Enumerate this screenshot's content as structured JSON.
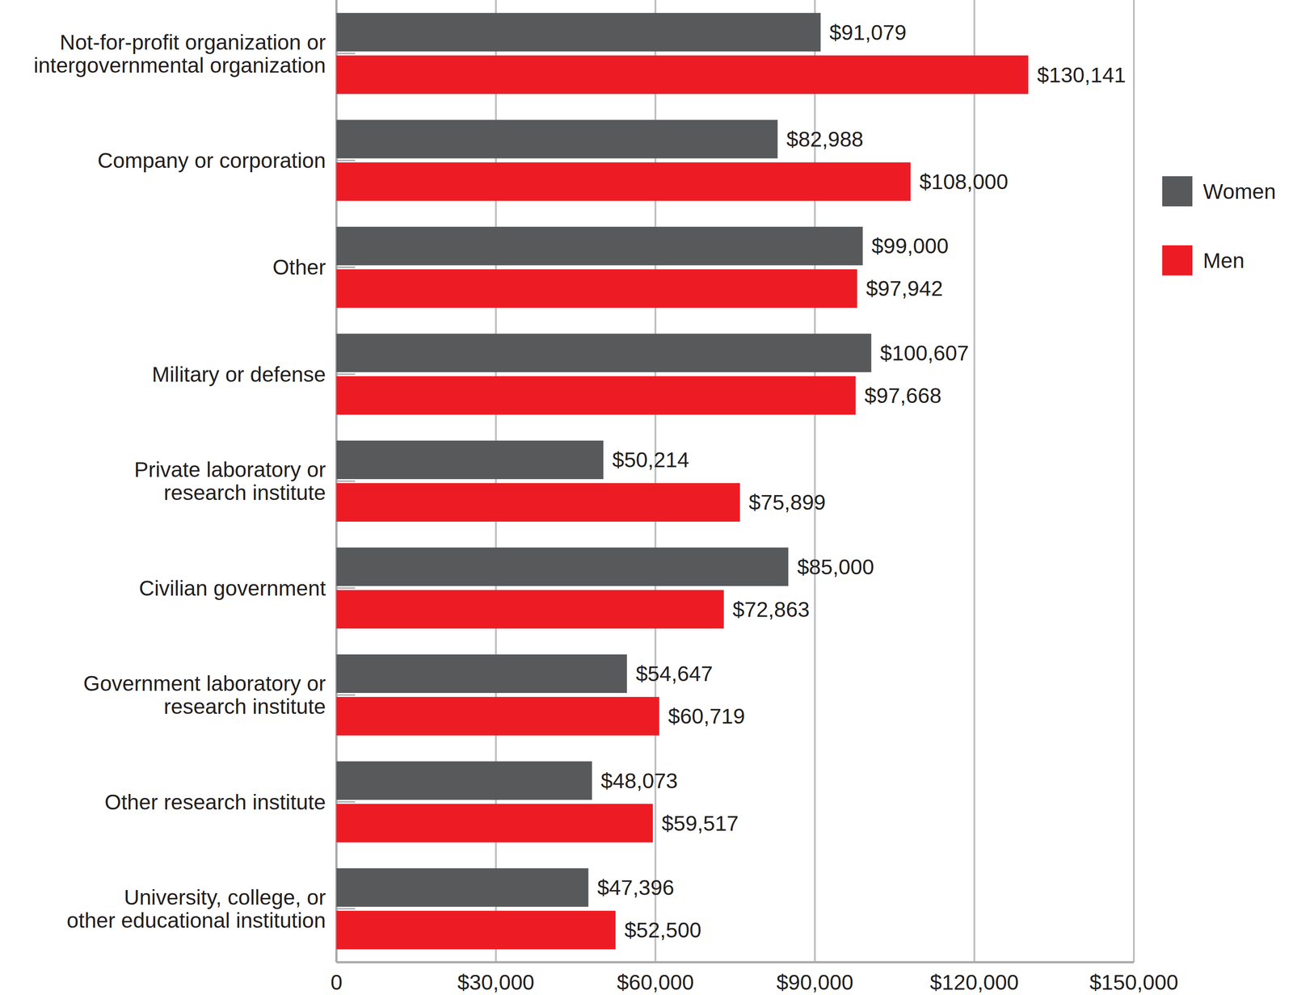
{
  "chart_data": {
    "type": "bar",
    "orientation": "horizontal",
    "categories": [
      "Not-for-profit organization or\nintergovernmental organization",
      "Company or corporation",
      "Other",
      "Military or defense",
      "Private laboratory or\nresearch institute",
      "Civilian government",
      "Government laboratory or\nresearch institute",
      "Other research institute",
      "University, college, or\nother educational institution"
    ],
    "series": [
      {
        "name": "Women",
        "color": "#58595b",
        "values": [
          91079,
          82988,
          99000,
          100607,
          50214,
          85000,
          54647,
          48073,
          47396
        ],
        "value_labels": [
          "$91,079",
          "$82,988",
          "$99,000",
          "$100,607",
          "$50,214",
          "$85,000",
          "$54,647",
          "$48,073",
          "$47,396"
        ]
      },
      {
        "name": "Men",
        "color": "#ed1c24",
        "values": [
          130141,
          108000,
          97942,
          97668,
          75899,
          72863,
          60719,
          59517,
          52500
        ],
        "value_labels": [
          "$130,141",
          "$108,000",
          "$97,942",
          "$97,668",
          "$75,899",
          "$72,863",
          "$60,719",
          "$59,517",
          "$52,500"
        ]
      }
    ],
    "xlim": [
      0,
      150000
    ],
    "xticks": [
      0,
      {
        "value": 30000,
        "label": "$30,000"
      },
      {
        "value": 60000,
        "label": "$60,000"
      },
      {
        "value": 90000,
        "label": "$90,000"
      },
      {
        "value": 120000,
        "label": "$120,000"
      },
      {
        "value": 150000,
        "label": "$150,000"
      }
    ],
    "grid": true,
    "data_labels": true,
    "legend": "right"
  }
}
